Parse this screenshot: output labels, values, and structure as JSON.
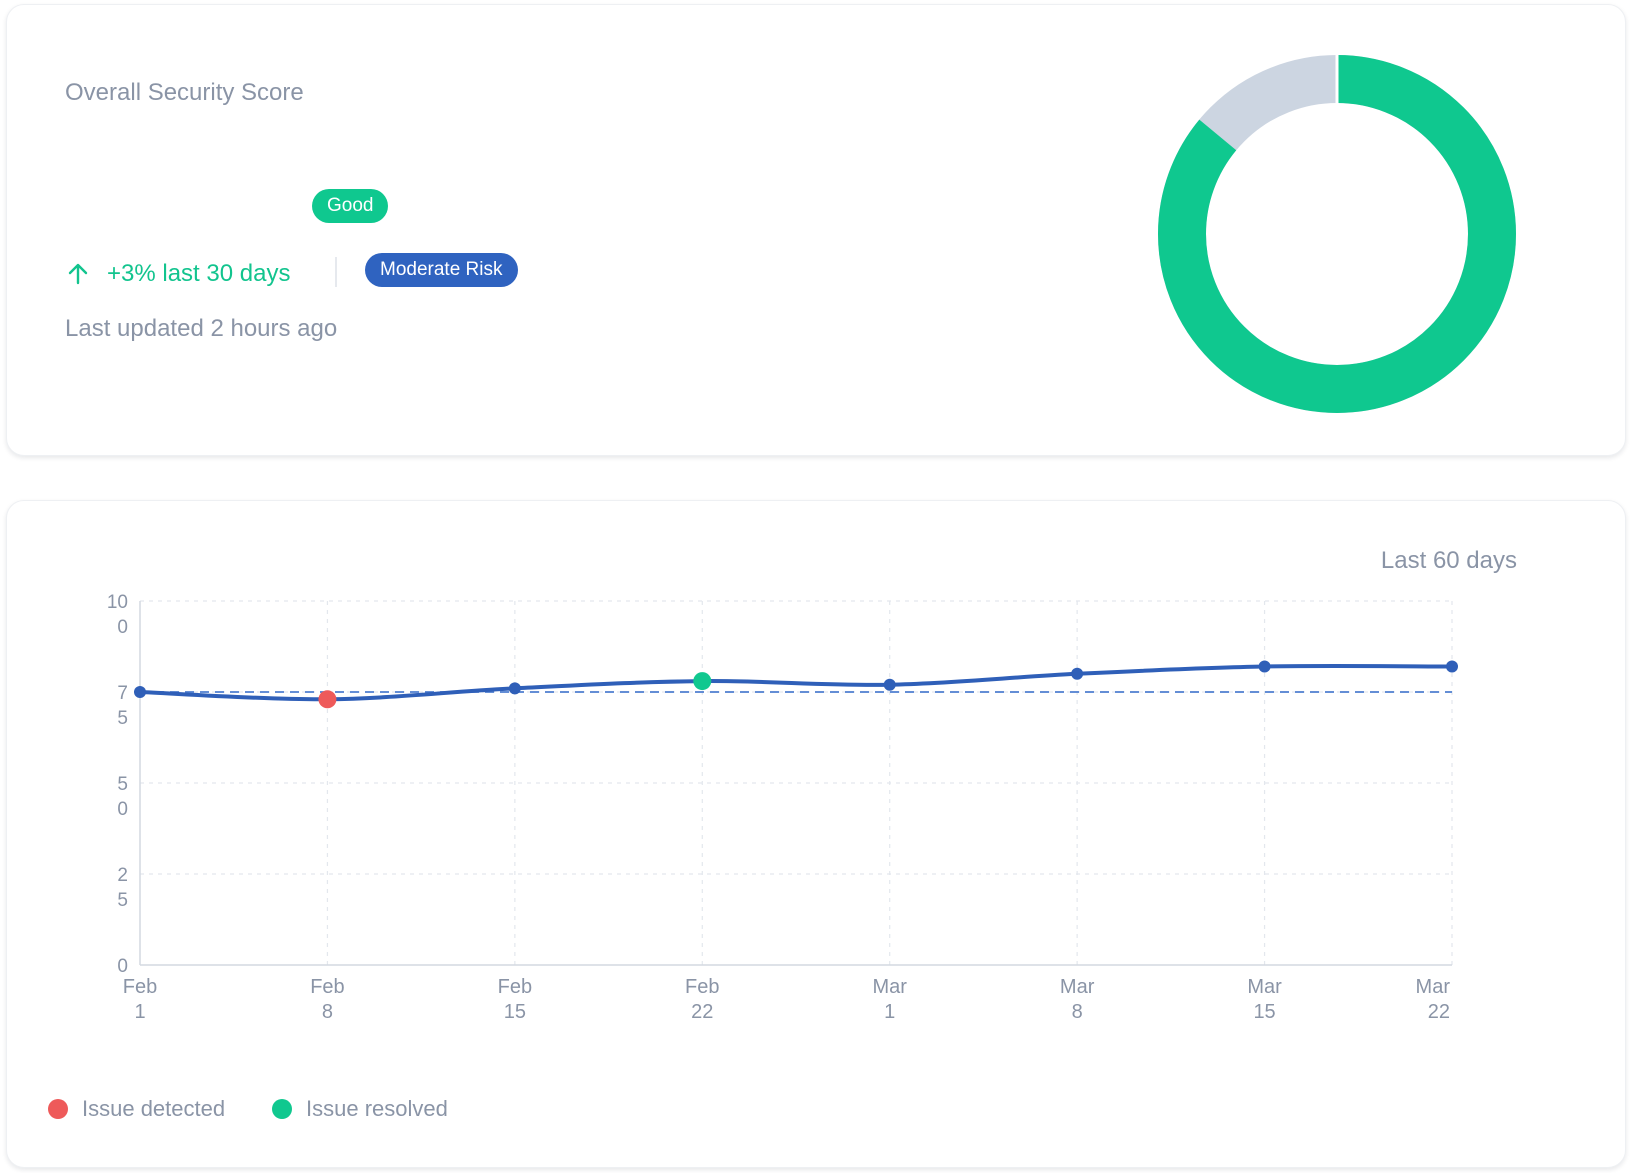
{
  "score_card": {
    "title": "Overall Security Score",
    "status_badge": "Good",
    "trend_text": "+3% last 30 days",
    "trend_icon": "arrow-up-icon",
    "risk_badge": "Moderate Risk",
    "last_updated": "Last updated 2 hours ago",
    "colors": {
      "accent": "#0fc88f",
      "risk": "#2f63c0",
      "track": "#ccd5e1"
    },
    "donut": {
      "score_fraction": 0.86
    }
  },
  "trend_card": {
    "range_label": "Last 60 days",
    "legend": [
      {
        "label": "Issue detected",
        "color": "#ee5a5a"
      },
      {
        "label": "Issue resolved",
        "color": "#10c88f"
      }
    ]
  },
  "chart_data": {
    "type": "line",
    "title": "",
    "xlabel": "",
    "ylabel": "",
    "ylim": [
      0,
      100
    ],
    "y_ticks": [
      {
        "value": 100,
        "label": "10\n0"
      },
      {
        "value": 75,
        "label": "7\n5"
      },
      {
        "value": 50,
        "label": "5\n0"
      },
      {
        "value": 25,
        "label": "2\n5"
      },
      {
        "value": 0,
        "label": "0"
      }
    ],
    "x_ticks": [
      "Feb\n1",
      "Feb\n8",
      "Feb\n15",
      "Feb\n22",
      "Mar\n1",
      "Mar\n8",
      "Mar\n15",
      "Mar\n22"
    ],
    "grid": true,
    "reference_line": {
      "value": 75,
      "style": "dashed"
    },
    "series": [
      {
        "color": "#2f5fb8",
        "values": [
          75,
          73,
          76,
          78,
          77,
          80,
          82,
          82
        ]
      }
    ],
    "markers": [
      {
        "index": 1,
        "type": "issue-detected",
        "color": "#ee5a5a"
      },
      {
        "index": 3,
        "type": "issue-resolved",
        "color": "#10c88f"
      }
    ],
    "legend_placement": "bottom-left"
  }
}
